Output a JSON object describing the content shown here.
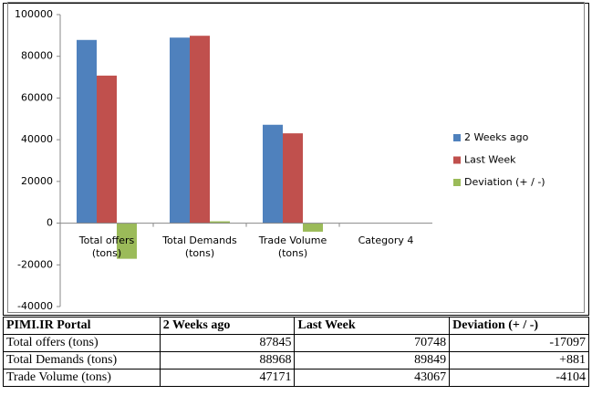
{
  "chart_data": {
    "type": "bar",
    "categories": [
      "Total offers (tons)",
      "Total Demands (tons)",
      "Trade Volume (tons)",
      "Category 4"
    ],
    "series": [
      {
        "name": "2 Weeks ago",
        "color": "#4f81bd",
        "values": [
          87845,
          88968,
          47171,
          null
        ]
      },
      {
        "name": "Last Week",
        "color": "#c0504d",
        "values": [
          70748,
          89849,
          43067,
          null
        ]
      },
      {
        "name": "Deviation (+ / -)",
        "color": "#9bbb59",
        "values": [
          -17097,
          881,
          -4104,
          null
        ]
      }
    ],
    "ylim": [
      -40000,
      100000
    ],
    "yticks": [
      -40000,
      -20000,
      0,
      20000,
      40000,
      60000,
      80000,
      100000
    ],
    "grid": false,
    "legend": "right"
  },
  "table": {
    "header": [
      "PIMI.IR Portal",
      "2 Weeks ago",
      "Last Week",
      "Deviation (+ / -)"
    ],
    "rows": [
      [
        "Total offers (tons)",
        "87845",
        "70748",
        "-17097"
      ],
      [
        "Total Demands (tons)",
        "88968",
        "89849",
        "+881"
      ],
      [
        "Trade Volume (tons)",
        "47171",
        "43067",
        "-4104"
      ]
    ]
  }
}
